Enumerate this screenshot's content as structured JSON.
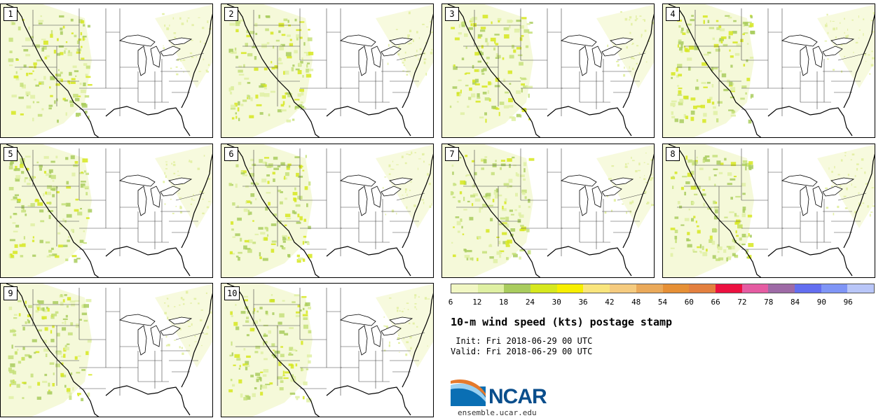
{
  "panels": [
    {
      "label": "1",
      "variant": 0
    },
    {
      "label": "2",
      "variant": 1
    },
    {
      "label": "3",
      "variant": 2
    },
    {
      "label": "4",
      "variant": 3
    },
    {
      "label": "5",
      "variant": 4
    },
    {
      "label": "6",
      "variant": 5
    },
    {
      "label": "7",
      "variant": 6
    },
    {
      "label": "8",
      "variant": 7
    },
    {
      "label": "9",
      "variant": 8
    },
    {
      "label": "10",
      "variant": 9
    }
  ],
  "colorbar": {
    "colors": [
      "#f1f7c4",
      "#dff0a3",
      "#a9cc5e",
      "#d6e81e",
      "#f7ef00",
      "#f9e57d",
      "#f5cb7f",
      "#eaa95a",
      "#e69036",
      "#e3803f",
      "#ec1140",
      "#e55ca2",
      "#9e6aa6",
      "#636ef0",
      "#7f95f6",
      "#b9c6f8"
    ],
    "ticks": [
      "6",
      "12",
      "18",
      "24",
      "30",
      "36",
      "42",
      "48",
      "54",
      "60",
      "66",
      "72",
      "78",
      "84",
      "90",
      "96"
    ]
  },
  "title": "10-m wind speed (kts) postage stamp",
  "init": " Init: Fri 2018-06-29 00 UTC",
  "valid": "Valid: Fri 2018-06-29 00 UTC",
  "logo": {
    "name": "NCAR",
    "url": "ensemble.ucar.edu"
  }
}
